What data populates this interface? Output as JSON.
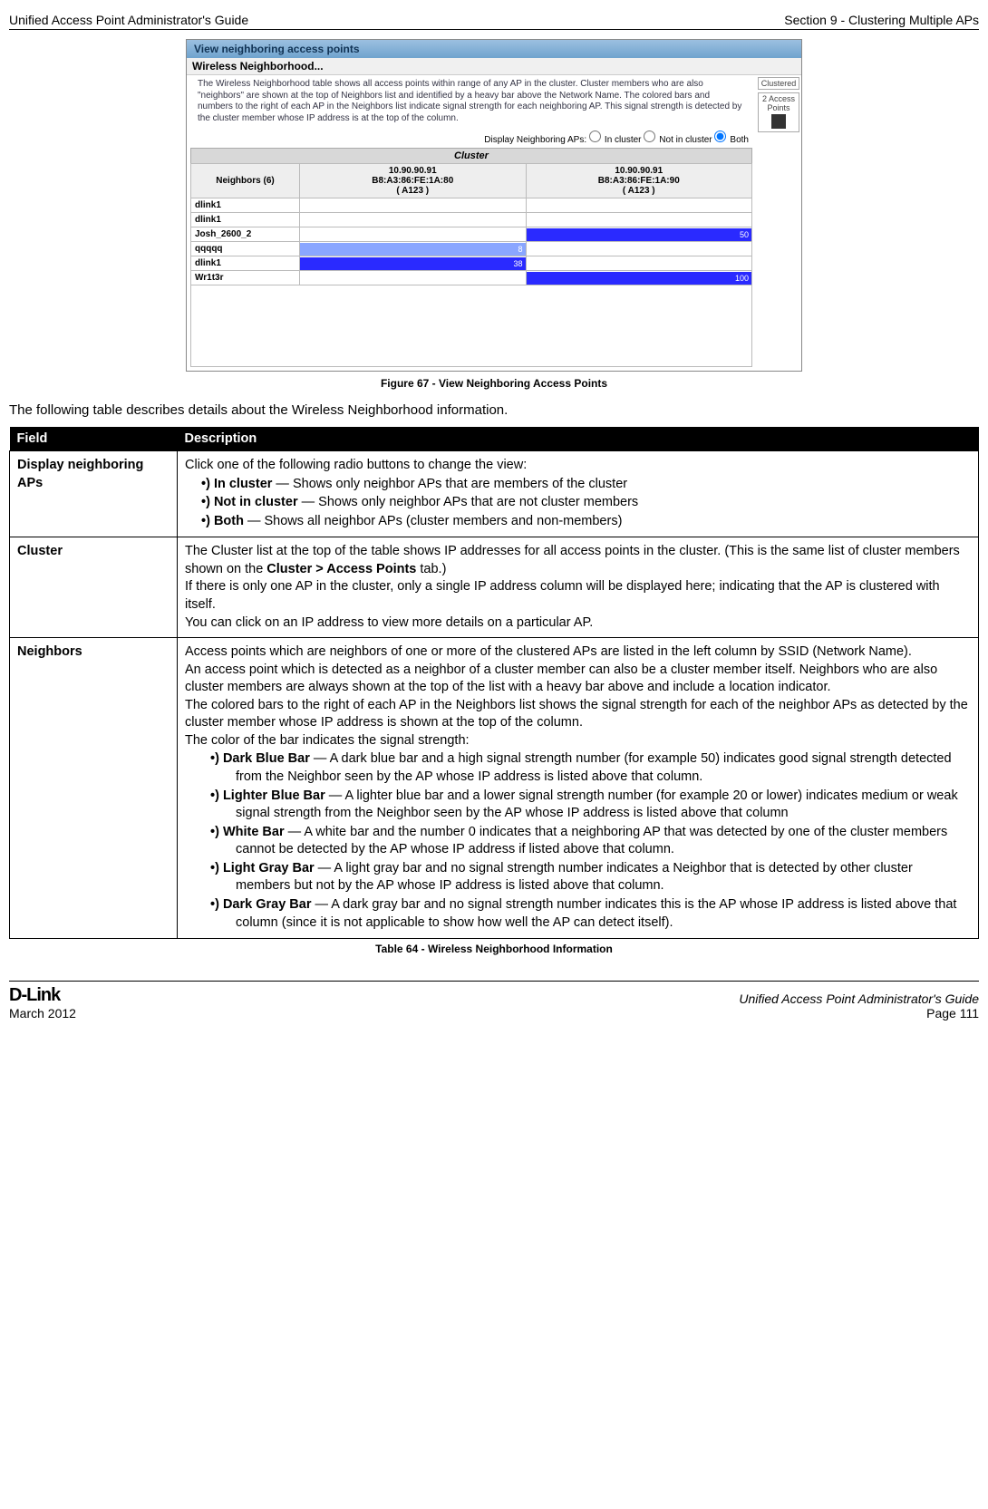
{
  "header": {
    "left": "Unified Access Point Administrator's Guide",
    "right": "Section 9 - Clustering Multiple APs"
  },
  "screenshot": {
    "title": "View neighboring access points",
    "section": "Wireless Neighborhood...",
    "desc": "The Wireless Neighborhood table shows all access points within range of any AP in the cluster. Cluster members who are also \"neighbors\" are shown at the top of Neighbors list and identified by a heavy bar above the Network Name. The colored bars and numbers to the right of each AP in the Neighbors list indicate signal strength for each neighboring AP. This signal strength is detected by the cluster member whose IP address is at the top of the column.",
    "side": {
      "clustered": "Clustered",
      "aps": "2 Access Points"
    },
    "radios": {
      "label": "Display Neighboring APs:",
      "opt1": "In cluster",
      "opt2": "Not in cluster",
      "opt3": "Both"
    },
    "cluster_label": "Cluster",
    "col_neighbors": "Neighbors (6)",
    "col1": {
      "ip": "10.90.90.91",
      "mac": "B8:A3:86:FE:1A:80",
      "loc": "( A123 )"
    },
    "col2": {
      "ip": "10.90.90.91",
      "mac": "B8:A3:86:FE:1A:90",
      "loc": "( A123 )"
    },
    "rows": [
      {
        "name": "dlink1",
        "v1": "",
        "c1": "",
        "w1": 0,
        "v2": "",
        "c2": "",
        "w2": 0
      },
      {
        "name": "dlink1",
        "v1": "",
        "c1": "",
        "w1": 0,
        "v2": "",
        "c2": "",
        "w2": 0
      },
      {
        "name": "Josh_2600_2",
        "v1": "",
        "c1": "",
        "w1": 0,
        "v2": "50",
        "c2": "#2a2aff",
        "w2": 100
      },
      {
        "name": "qqqqq",
        "v1": "8",
        "c1": "#8aa6ff",
        "w1": 100,
        "v2": "",
        "c2": "",
        "w2": 0
      },
      {
        "name": "dlink1",
        "v1": "38",
        "c1": "#2a2aff",
        "w1": 100,
        "v2": "",
        "c2": "",
        "w2": 0
      },
      {
        "name": "Wr1t3r",
        "v1": "",
        "c1": "",
        "w1": 0,
        "v2": "100",
        "c2": "#2a2aff",
        "w2": 100
      }
    ]
  },
  "figure_caption": "Figure 67 - View Neighboring Access Points",
  "intro": "The following table describes details about the Wireless Neighborhood information.",
  "table_head": {
    "field": "Field",
    "desc": "Description"
  },
  "row1": {
    "field": "Display neighboring APs",
    "lead": "Click one of the following radio buttons to change the view:",
    "b1a": "In cluster",
    "b1b": " — Shows only neighbor APs that are members of the cluster",
    "b2a": "Not in cluster",
    "b2b": " — Shows only neighbor APs that are not cluster members",
    "b3a": "Both",
    "b3b": " — Shows all neighbor APs (cluster members and non-members)"
  },
  "row2": {
    "field": "Cluster",
    "p1a": "The Cluster list at the top of the table shows IP addresses for all access points in the cluster. (This is the same list of cluster members shown on the ",
    "p1b": "Cluster > Access Points",
    "p1c": " tab.)",
    "p2": "If there is only one AP in the cluster, only a single IP address column will be displayed here; indicating that the AP is clustered with itself.",
    "p3": "You can click on an IP address to view more details on a particular AP."
  },
  "row3": {
    "field": "Neighbors",
    "p1": "Access points which are neighbors of one or more of the clustered APs are listed in the left column by SSID (Network Name).",
    "p2": "An access point which is detected as a neighbor of a cluster member can also be a cluster member itself. Neighbors who are also cluster members are always shown at the top of the list with a heavy bar above and include a location indicator.",
    "p3": "The colored bars to the right of each AP in the Neighbors list shows the signal strength for each of the neighbor APs as detected by the cluster member whose IP address is shown at the top of the column.",
    "p4": "The color of the bar indicates the signal strength:",
    "b1a": "Dark Blue Bar",
    "b1b": " — A dark blue bar and a high signal strength number (for example 50) indicates good signal strength detected from the Neighbor seen by the AP whose IP address is listed above that column.",
    "b2a": "Lighter Blue Bar",
    "b2b": " — A lighter blue bar and a lower signal strength number (for example 20 or lower) indicates medium or weak signal strength from the Neighbor seen by the AP whose IP address is listed above that column",
    "b3a": "White Bar",
    "b3b": " — A white bar and the number 0 indicates that a neighboring AP that was detected by one of the cluster members cannot be detected by the AP whose IP address if listed above that column.",
    "b4a": "Light Gray Bar",
    "b4b": " — A light gray bar and no signal strength number indicates a Neighbor that is detected by other cluster members but not by the AP whose IP address is listed above that column.",
    "b5a": "Dark Gray Bar",
    "b5b": " — A dark gray bar and no signal strength number indicates this is the AP whose IP address is listed above that column (since it is not applicable to show how well the AP can detect itself)."
  },
  "table_caption": "Table 64 - Wireless Neighborhood Information",
  "footer": {
    "brand": "D-Link",
    "date": "March 2012",
    "guide": "Unified Access Point Administrator's Guide",
    "page": "Page 111"
  }
}
